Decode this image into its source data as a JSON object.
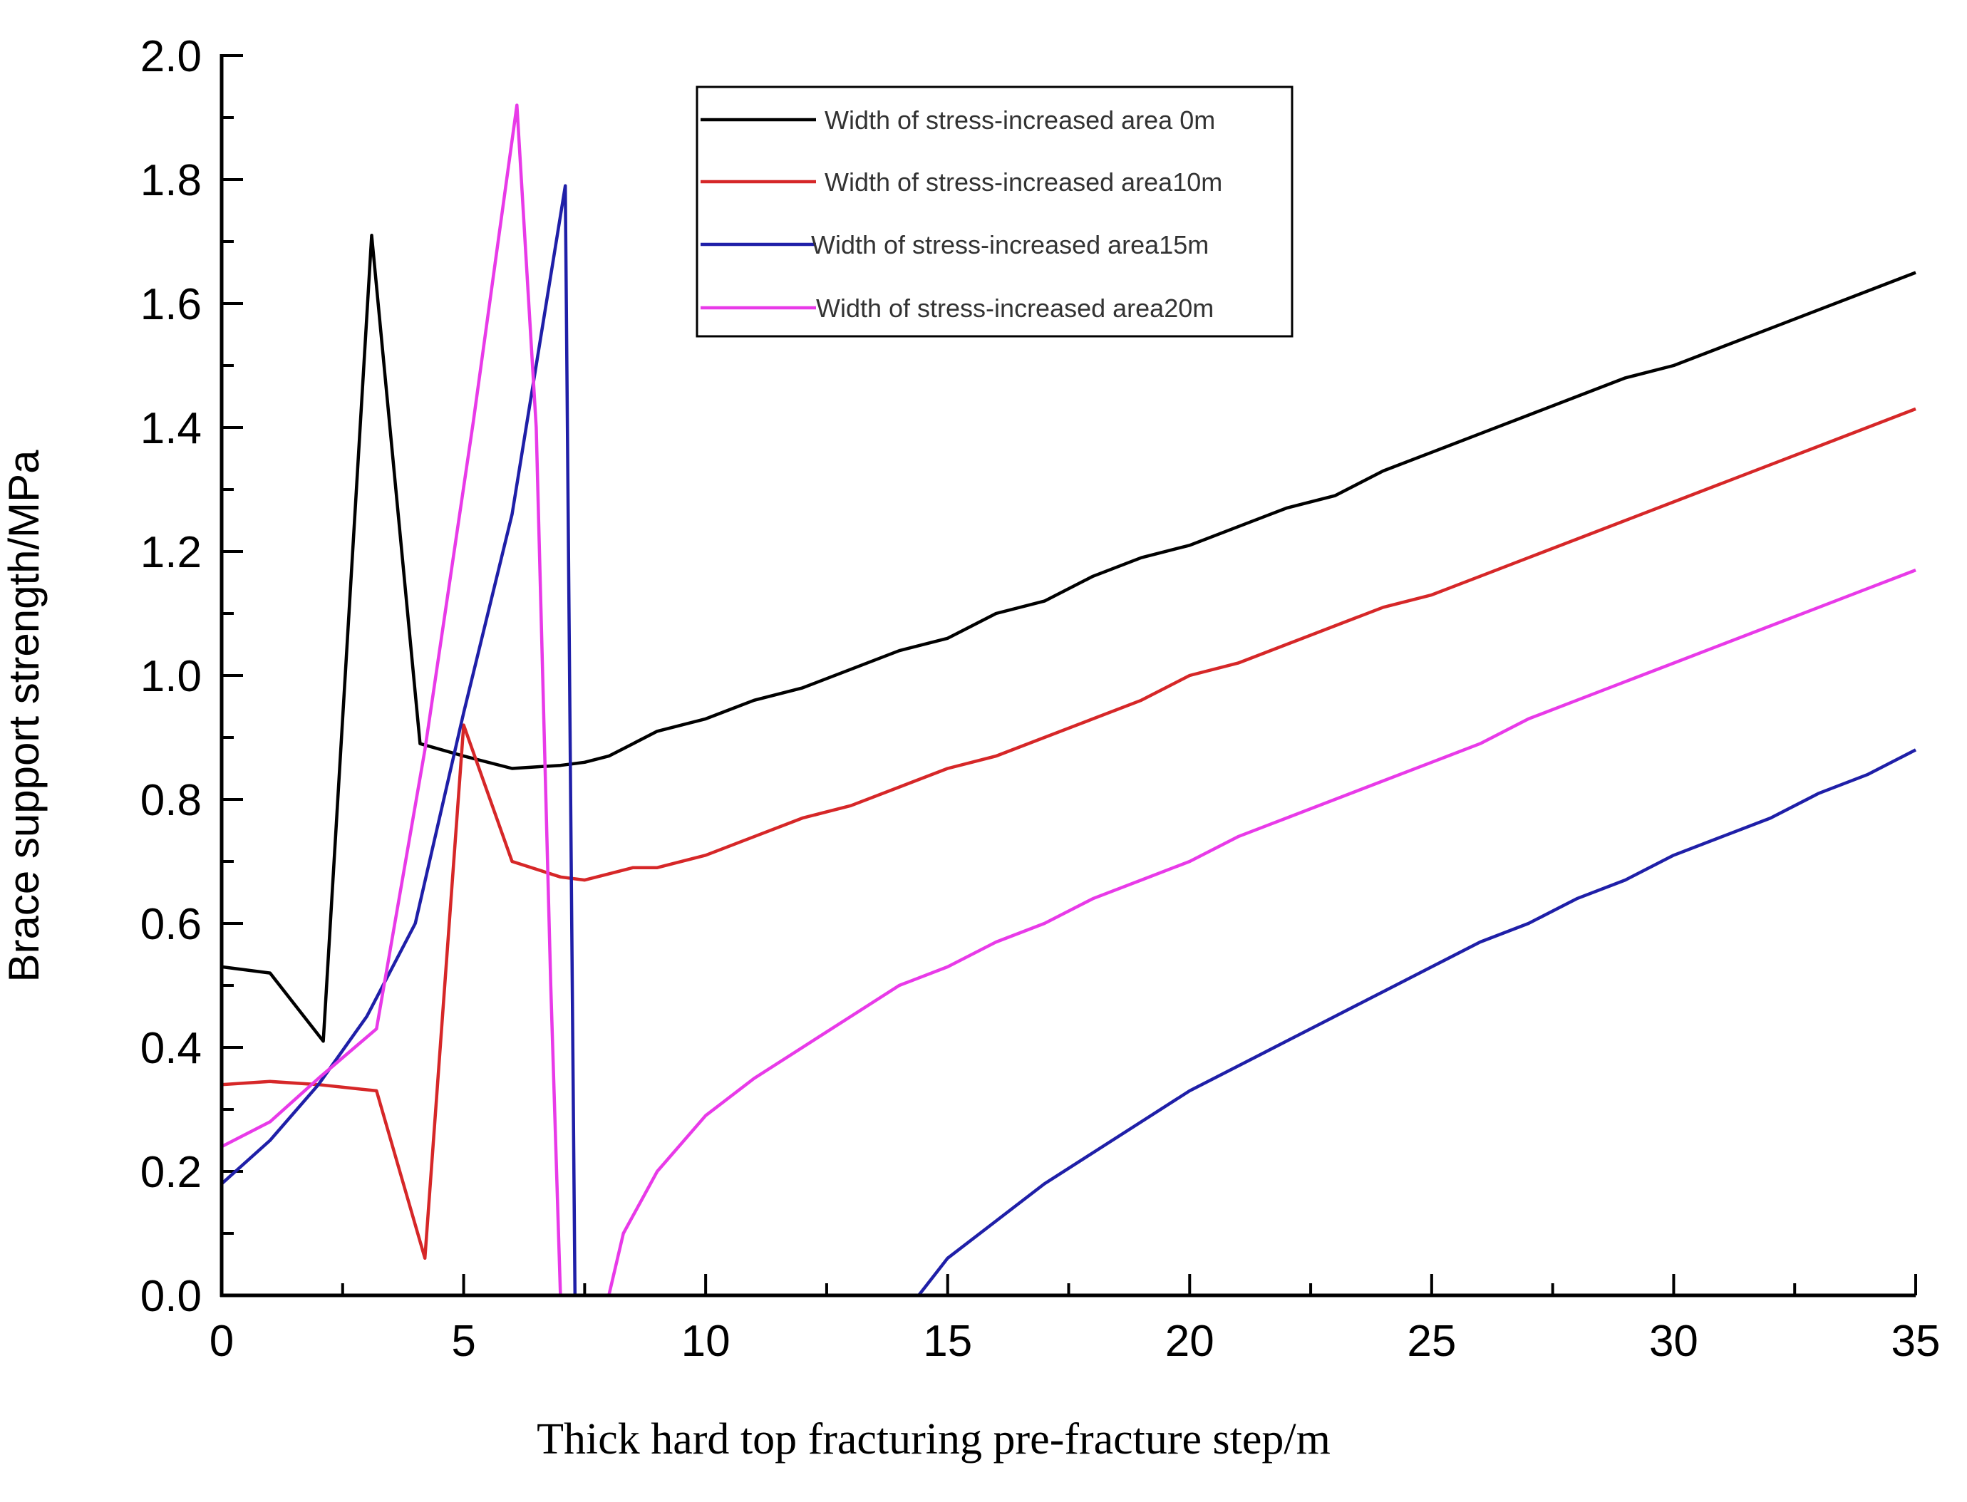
{
  "chart_data": {
    "type": "line",
    "title": "",
    "xlabel": "Thick hard top fracturing pre-fracture step/m",
    "ylabel": "Brace support strength/MPa",
    "xlim": [
      0,
      35
    ],
    "ylim": [
      0,
      2.0
    ],
    "x_ticks": [
      "0",
      "5",
      "10",
      "15",
      "20",
      "25",
      "30",
      "35"
    ],
    "y_ticks": [
      "0.0",
      "0.2",
      "0.4",
      "0.6",
      "0.8",
      "1.0",
      "1.2",
      "1.4",
      "1.6",
      "1.8",
      "2.0"
    ],
    "legend_position": "top-center",
    "series": [
      {
        "name": "Width of stress-increased area 0m",
        "color": "#000000",
        "points": [
          [
            0,
            0.53
          ],
          [
            1,
            0.52
          ],
          [
            2.1,
            0.41
          ],
          [
            3.1,
            1.71
          ],
          [
            4.1,
            0.89
          ],
          [
            5,
            0.87
          ],
          [
            6,
            0.85
          ],
          [
            7,
            0.855
          ],
          [
            7.5,
            0.86
          ],
          [
            8,
            0.87
          ],
          [
            8.5,
            0.89
          ],
          [
            9,
            0.91
          ],
          [
            10,
            0.93
          ],
          [
            11,
            0.96
          ],
          [
            12,
            0.98
          ],
          [
            13,
            1.01
          ],
          [
            14,
            1.04
          ],
          [
            15,
            1.06
          ],
          [
            16,
            1.1
          ],
          [
            17,
            1.12
          ],
          [
            18,
            1.16
          ],
          [
            19,
            1.19
          ],
          [
            20,
            1.21
          ],
          [
            21,
            1.24
          ],
          [
            22,
            1.27
          ],
          [
            23,
            1.29
          ],
          [
            24,
            1.33
          ],
          [
            25,
            1.36
          ],
          [
            26,
            1.39
          ],
          [
            27,
            1.42
          ],
          [
            28,
            1.45
          ],
          [
            29,
            1.48
          ],
          [
            30,
            1.5
          ],
          [
            31,
            1.53
          ],
          [
            32,
            1.56
          ],
          [
            33,
            1.59
          ],
          [
            34,
            1.62
          ],
          [
            35,
            1.65
          ]
        ]
      },
      {
        "name": "Width of stress-increased area10m",
        "color": "#d62728",
        "points": [
          [
            0,
            0.34
          ],
          [
            1,
            0.345
          ],
          [
            2,
            0.34
          ],
          [
            3.2,
            0.33
          ],
          [
            4.2,
            0.06
          ],
          [
            5,
            0.92
          ],
          [
            6,
            0.7
          ],
          [
            7,
            0.675
          ],
          [
            7.5,
            0.67
          ],
          [
            8,
            0.68
          ],
          [
            8.5,
            0.69
          ],
          [
            9,
            0.69
          ],
          [
            10,
            0.71
          ],
          [
            11,
            0.74
          ],
          [
            12,
            0.77
          ],
          [
            13,
            0.79
          ],
          [
            14,
            0.82
          ],
          [
            15,
            0.85
          ],
          [
            16,
            0.87
          ],
          [
            17,
            0.9
          ],
          [
            18,
            0.93
          ],
          [
            19,
            0.96
          ],
          [
            20,
            1.0
          ],
          [
            21,
            1.02
          ],
          [
            22,
            1.05
          ],
          [
            23,
            1.08
          ],
          [
            24,
            1.11
          ],
          [
            25,
            1.13
          ],
          [
            26,
            1.16
          ],
          [
            27,
            1.19
          ],
          [
            28,
            1.22
          ],
          [
            29,
            1.25
          ],
          [
            30,
            1.28
          ],
          [
            31,
            1.31
          ],
          [
            32,
            1.34
          ],
          [
            33,
            1.37
          ],
          [
            34,
            1.4
          ],
          [
            35,
            1.43
          ]
        ]
      },
      {
        "name": "Width of stress-increased area15m",
        "color": "#1f1fa8",
        "points": [
          [
            0,
            0.18
          ],
          [
            1,
            0.25
          ],
          [
            2,
            0.34
          ],
          [
            3,
            0.45
          ],
          [
            4,
            0.6
          ],
          [
            5,
            0.94
          ],
          [
            6,
            1.26
          ],
          [
            7.1,
            1.79
          ],
          [
            7.3,
            0.0
          ],
          [
            14.4,
            0.0
          ],
          [
            15,
            0.06
          ],
          [
            16,
            0.12
          ],
          [
            17,
            0.18
          ],
          [
            18,
            0.23
          ],
          [
            19,
            0.28
          ],
          [
            20,
            0.33
          ],
          [
            21,
            0.37
          ],
          [
            22,
            0.41
          ],
          [
            23,
            0.45
          ],
          [
            24,
            0.49
          ],
          [
            25,
            0.53
          ],
          [
            26,
            0.57
          ],
          [
            27,
            0.6
          ],
          [
            28,
            0.64
          ],
          [
            29,
            0.67
          ],
          [
            30,
            0.71
          ],
          [
            31,
            0.74
          ],
          [
            32,
            0.77
          ],
          [
            33,
            0.81
          ],
          [
            34,
            0.84
          ],
          [
            35,
            0.88
          ]
        ]
      },
      {
        "name": "Width of stress-increased area20m",
        "color": "#e83ae8",
        "points": [
          [
            0,
            0.24
          ],
          [
            1,
            0.28
          ],
          [
            2,
            0.35
          ],
          [
            3.2,
            0.43
          ],
          [
            4.2,
            0.88
          ],
          [
            5.2,
            1.41
          ],
          [
            6.1,
            1.92
          ],
          [
            6.5,
            1.4
          ],
          [
            6.8,
            0.5
          ],
          [
            7.0,
            0.0
          ],
          [
            8.0,
            0.0
          ],
          [
            8.3,
            0.1
          ],
          [
            9,
            0.2
          ],
          [
            10,
            0.29
          ],
          [
            11,
            0.35
          ],
          [
            12,
            0.4
          ],
          [
            13,
            0.45
          ],
          [
            14,
            0.5
          ],
          [
            15,
            0.53
          ],
          [
            16,
            0.57
          ],
          [
            17,
            0.6
          ],
          [
            18,
            0.64
          ],
          [
            19,
            0.67
          ],
          [
            20,
            0.7
          ],
          [
            21,
            0.74
          ],
          [
            22,
            0.77
          ],
          [
            23,
            0.8
          ],
          [
            24,
            0.83
          ],
          [
            25,
            0.86
          ],
          [
            26,
            0.89
          ],
          [
            27,
            0.93
          ],
          [
            28,
            0.96
          ],
          [
            29,
            0.99
          ],
          [
            30,
            1.02
          ],
          [
            31,
            1.05
          ],
          [
            32,
            1.08
          ],
          [
            33,
            1.11
          ],
          [
            34,
            1.14
          ],
          [
            35,
            1.17
          ]
        ]
      }
    ]
  }
}
